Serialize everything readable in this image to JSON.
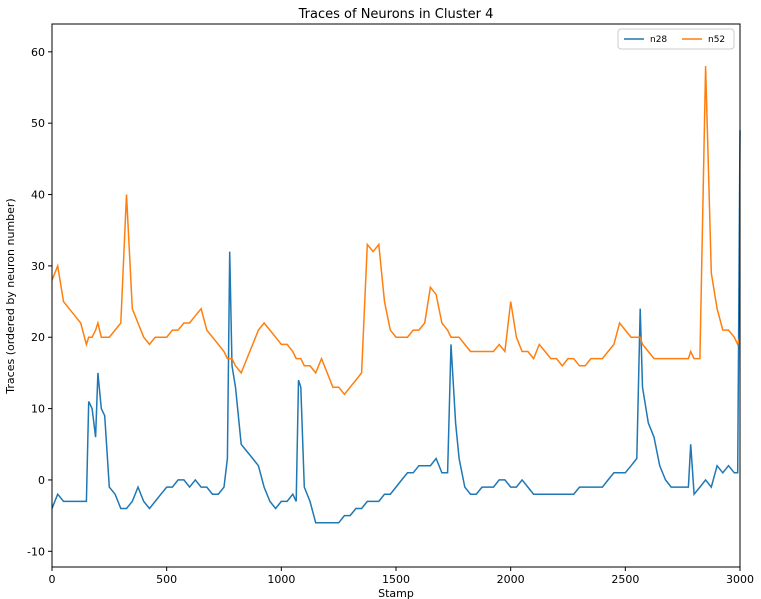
{
  "chart_data": {
    "type": "line",
    "title": "Traces of Neurons in Cluster 4",
    "x_label": "Stamp",
    "y_label": "Traces (ordered by neuron number)",
    "x": [
      0,
      25,
      50,
      75,
      100,
      125,
      150,
      160,
      175,
      190,
      200,
      215,
      230,
      250,
      275,
      300,
      325,
      350,
      375,
      400,
      425,
      450,
      475,
      500,
      525,
      550,
      575,
      600,
      625,
      650,
      675,
      700,
      725,
      750,
      765,
      775,
      785,
      800,
      825,
      850,
      875,
      900,
      925,
      950,
      975,
      1000,
      1025,
      1050,
      1065,
      1075,
      1085,
      1100,
      1125,
      1150,
      1175,
      1200,
      1225,
      1250,
      1275,
      1300,
      1325,
      1350,
      1375,
      1400,
      1425,
      1450,
      1475,
      1500,
      1525,
      1550,
      1575,
      1600,
      1625,
      1650,
      1675,
      1700,
      1725,
      1740,
      1760,
      1775,
      1800,
      1825,
      1850,
      1875,
      1900,
      1925,
      1950,
      1975,
      2000,
      2025,
      2050,
      2075,
      2100,
      2125,
      2150,
      2175,
      2200,
      2225,
      2250,
      2275,
      2300,
      2325,
      2350,
      2375,
      2400,
      2425,
      2450,
      2475,
      2500,
      2525,
      2550,
      2565,
      2575,
      2600,
      2625,
      2650,
      2675,
      2700,
      2725,
      2750,
      2775,
      2785,
      2800,
      2825,
      2850,
      2875,
      2900,
      2925,
      2950,
      2975,
      2990,
      3000
    ],
    "series": [
      {
        "name": "n28",
        "color": "#1f77b4",
        "values": [
          -4,
          -2,
          -3,
          -3,
          -3,
          -3,
          -3,
          11,
          10,
          6,
          15,
          10,
          9,
          -1,
          -2,
          -4,
          -4,
          -3,
          -1,
          -3,
          -4,
          -3,
          -2,
          -1,
          -1,
          0,
          0,
          -1,
          0,
          -1,
          -1,
          -2,
          -2,
          -1,
          3,
          32,
          16,
          13,
          5,
          4,
          3,
          2,
          -1,
          -3,
          -4,
          -3,
          -3,
          -2,
          -3,
          14,
          13,
          -1,
          -3,
          -6,
          -6,
          -6,
          -6,
          -6,
          -5,
          -5,
          -4,
          -4,
          -3,
          -3,
          -3,
          -2,
          -2,
          -1,
          0,
          1,
          1,
          2,
          2,
          2,
          3,
          1,
          1,
          19,
          8,
          3,
          -1,
          -2,
          -2,
          -1,
          -1,
          -1,
          0,
          0,
          -1,
          -1,
          0,
          -1,
          -2,
          -2,
          -2,
          -2,
          -2,
          -2,
          -2,
          -2,
          -1,
          -1,
          -1,
          -1,
          -1,
          0,
          1,
          1,
          1,
          2,
          3,
          24,
          13,
          8,
          6,
          2,
          0,
          -1,
          -1,
          -1,
          -1,
          5,
          -2,
          -1,
          0,
          -1,
          2,
          1,
          2,
          1,
          1,
          49
        ]
      },
      {
        "name": "n52",
        "color": "#ff7f0e",
        "values": [
          28,
          30,
          25,
          24,
          23,
          22,
          19,
          20,
          20,
          21,
          22,
          20,
          20,
          20,
          21,
          22,
          40,
          24,
          22,
          20,
          19,
          20,
          20,
          20,
          21,
          21,
          22,
          22,
          23,
          24,
          21,
          20,
          19,
          18,
          17,
          17,
          17,
          16,
          15,
          17,
          19,
          21,
          22,
          21,
          20,
          19,
          19,
          18,
          17,
          17,
          17,
          16,
          16,
          15,
          17,
          15,
          13,
          13,
          12,
          13,
          14,
          15,
          33,
          32,
          33,
          25,
          21,
          20,
          20,
          20,
          21,
          21,
          22,
          27,
          26,
          22,
          21,
          20,
          20,
          20,
          19,
          18,
          18,
          18,
          18,
          18,
          19,
          18,
          25,
          20,
          18,
          18,
          17,
          19,
          18,
          17,
          17,
          16,
          17,
          17,
          16,
          16,
          17,
          17,
          17,
          18,
          19,
          22,
          21,
          20,
          20,
          20,
          19,
          18,
          17,
          17,
          17,
          17,
          17,
          17,
          17,
          18,
          17,
          17,
          58,
          29,
          24,
          21,
          21,
          20,
          19,
          20
        ]
      }
    ],
    "xlim": [
      0,
      3000
    ],
    "xticks": [
      0,
      500,
      1000,
      1500,
      2000,
      2500,
      3000
    ],
    "ylim": [
      -12.2,
      63.9
    ],
    "yticks": [
      -10,
      0,
      10,
      20,
      30,
      40,
      50,
      60
    ],
    "legend": "upper right"
  }
}
